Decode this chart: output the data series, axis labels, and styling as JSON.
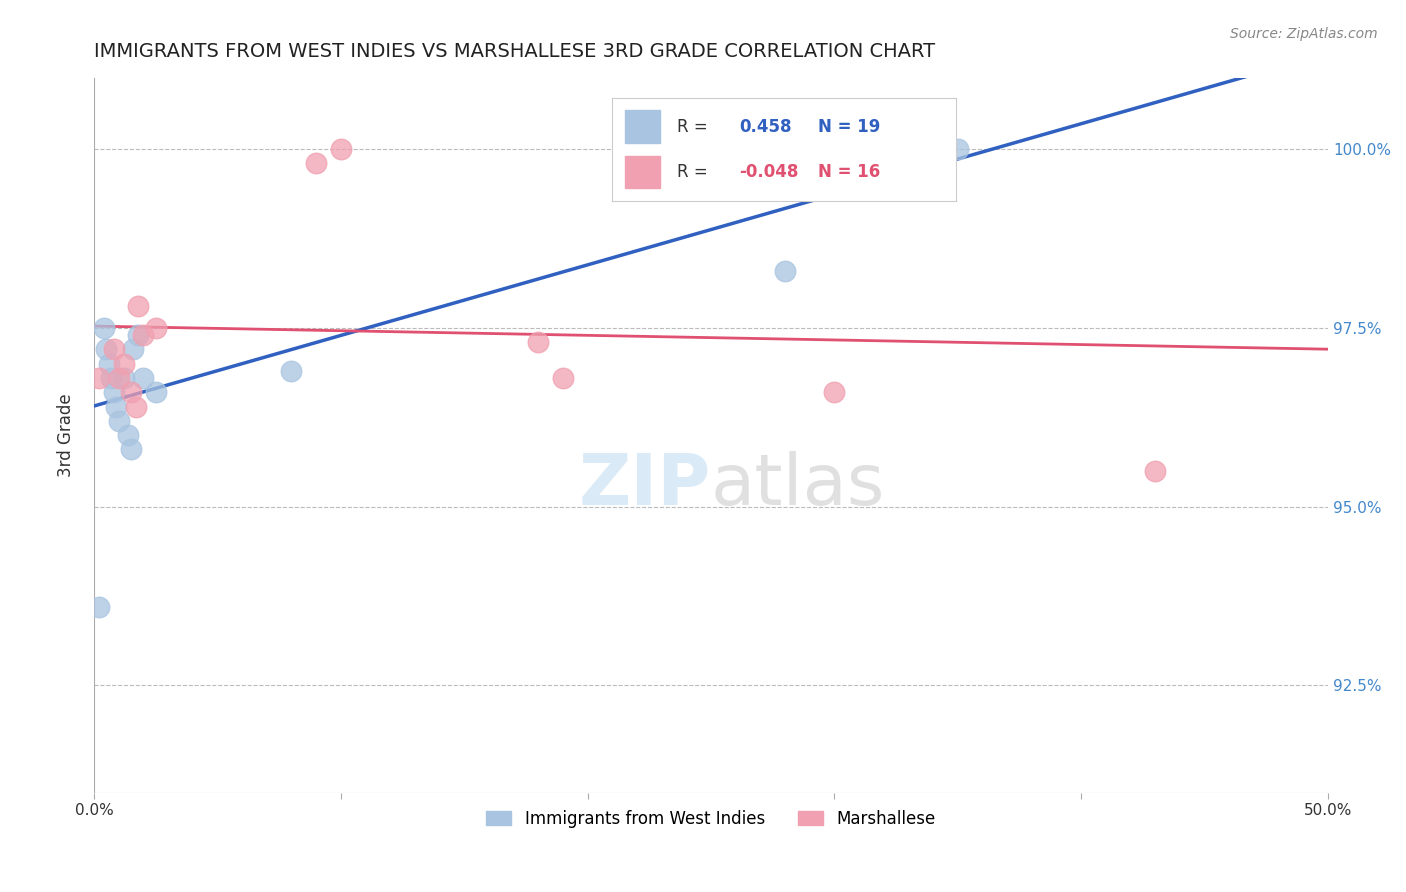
{
  "title": "IMMIGRANTS FROM WEST INDIES VS MARSHALLESE 3RD GRADE CORRELATION CHART",
  "source": "Source: ZipAtlas.com",
  "ylabel": "3rd Grade",
  "xlim": [
    0.0,
    0.5
  ],
  "ylim": [
    0.91,
    1.01
  ],
  "yticks": [
    0.925,
    0.95,
    0.975,
    1.0
  ],
  "ytick_labels": [
    "92.5%",
    "95.0%",
    "97.5%",
    "100.0%"
  ],
  "xticks": [
    0.0,
    0.1,
    0.2,
    0.3,
    0.4,
    0.5
  ],
  "xtick_labels": [
    "0.0%",
    "",
    "",
    "",
    "",
    "50.0%"
  ],
  "blue_R": 0.458,
  "blue_N": 19,
  "pink_R": -0.048,
  "pink_N": 16,
  "blue_color": "#a8c4e0",
  "pink_color": "#f0a0b0",
  "blue_line_color": "#3060c0",
  "pink_line_color": "#e05070",
  "blue_x": [
    0.002,
    0.004,
    0.005,
    0.006,
    0.007,
    0.008,
    0.009,
    0.01,
    0.012,
    0.014,
    0.015,
    0.016,
    0.018,
    0.02,
    0.025,
    0.08,
    0.22,
    0.28,
    0.35
  ],
  "blue_y": [
    0.936,
    0.975,
    0.972,
    0.97,
    0.968,
    0.966,
    0.964,
    0.962,
    0.968,
    0.96,
    0.958,
    0.972,
    0.974,
    0.968,
    0.966,
    0.969,
    0.995,
    0.983,
    1.0
  ],
  "pink_x": [
    0.002,
    0.008,
    0.01,
    0.012,
    0.015,
    0.017,
    0.018,
    0.02,
    0.025,
    0.09,
    0.1,
    0.18,
    0.19,
    0.28,
    0.3,
    0.43
  ],
  "pink_y": [
    0.968,
    0.972,
    0.968,
    0.97,
    0.966,
    0.964,
    0.978,
    0.974,
    0.975,
    0.998,
    1.0,
    0.973,
    0.968,
    0.998,
    0.966,
    0.955
  ],
  "legend_labels": [
    "Immigrants from West Indies",
    "Marshallese"
  ]
}
